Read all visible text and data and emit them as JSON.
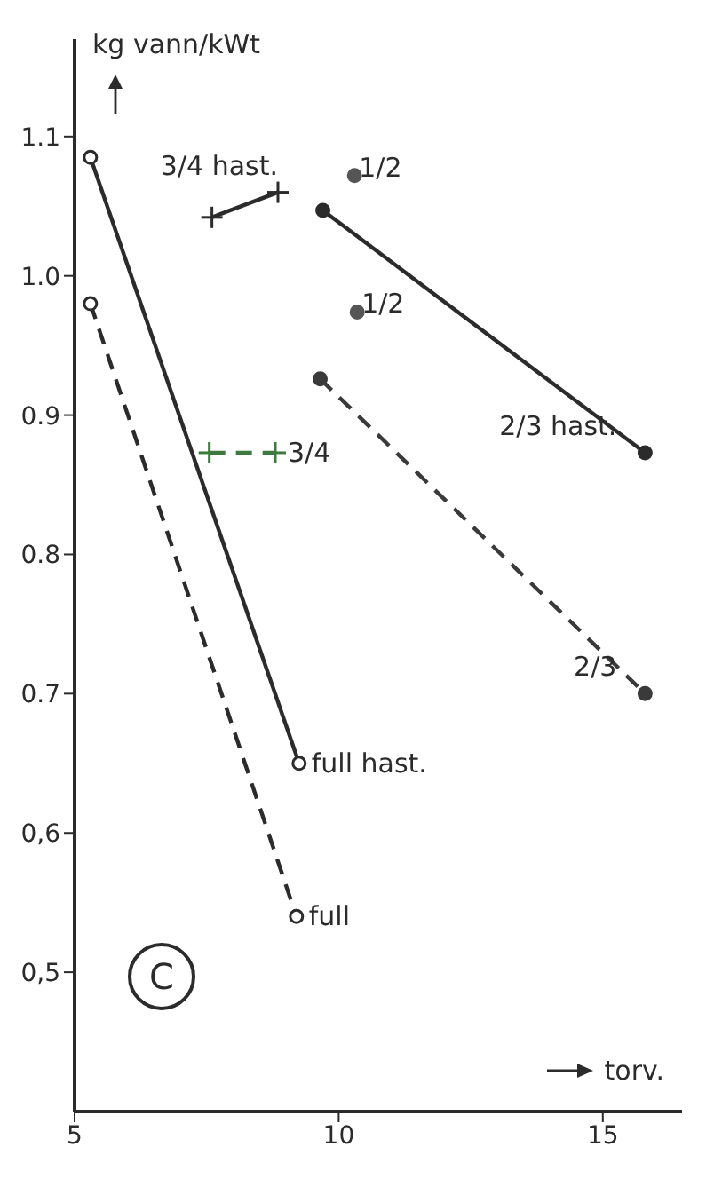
{
  "chart_data": {
    "type": "line",
    "ylabel": "kg vann/kWt",
    "xlabel": "torv.",
    "annotations": [
      "C"
    ],
    "xlim": [
      5,
      16.5
    ],
    "xticks": [
      5,
      10,
      15
    ],
    "ylim": [
      0.4,
      1.17
    ],
    "yticks": [
      {
        "value": 0.5,
        "label": "0,5"
      },
      {
        "value": 0.6,
        "label": "0,6"
      },
      {
        "value": 0.7,
        "label": "0.7"
      },
      {
        "value": 0.8,
        "label": "0.8"
      },
      {
        "value": 0.9,
        "label": "0.9"
      },
      {
        "value": 1.0,
        "label": "1.0"
      },
      1.1
    ],
    "grid": false,
    "legend": false,
    "series": [
      {
        "name": "full hast.",
        "color": "#2b2b2b",
        "line_style": "solid",
        "marker": "circle",
        "x": [
          5.3,
          9.25
        ],
        "values": [
          1.085,
          0.65
        ]
      },
      {
        "name": "full",
        "color": "#2b2b2b",
        "line_style": "dashed",
        "marker": "circle",
        "x": [
          5.3,
          9.2
        ],
        "values": [
          0.98,
          0.54
        ]
      },
      {
        "name": "3/4 hast.",
        "color": "#2b2b2b",
        "line_style": "solid",
        "marker": "cross",
        "x": [
          7.6,
          8.85
        ],
        "values": [
          1.042,
          1.06
        ]
      },
      {
        "name": "3/4",
        "color": "#3d7a3d",
        "line_style": "dashed",
        "marker": "cross",
        "x": [
          7.55,
          8.8
        ],
        "values": [
          0.873,
          0.873
        ]
      },
      {
        "name": "2/3 hast.",
        "color": "#2b2b2b",
        "line_style": "solid",
        "marker": "circle",
        "x": [
          9.7,
          15.8
        ],
        "values": [
          1.047,
          0.873
        ]
      },
      {
        "name": "2/3",
        "color": "#3a3a3a",
        "line_style": "dashed",
        "marker": "circle",
        "x": [
          9.65,
          15.8
        ],
        "values": [
          0.926,
          0.7
        ]
      },
      {
        "name": "1/2",
        "type": "scatter",
        "color": "#555555",
        "marker": "circle",
        "x": [
          10.3,
          10.35
        ],
        "values": [
          1.072,
          0.974
        ]
      }
    ]
  }
}
